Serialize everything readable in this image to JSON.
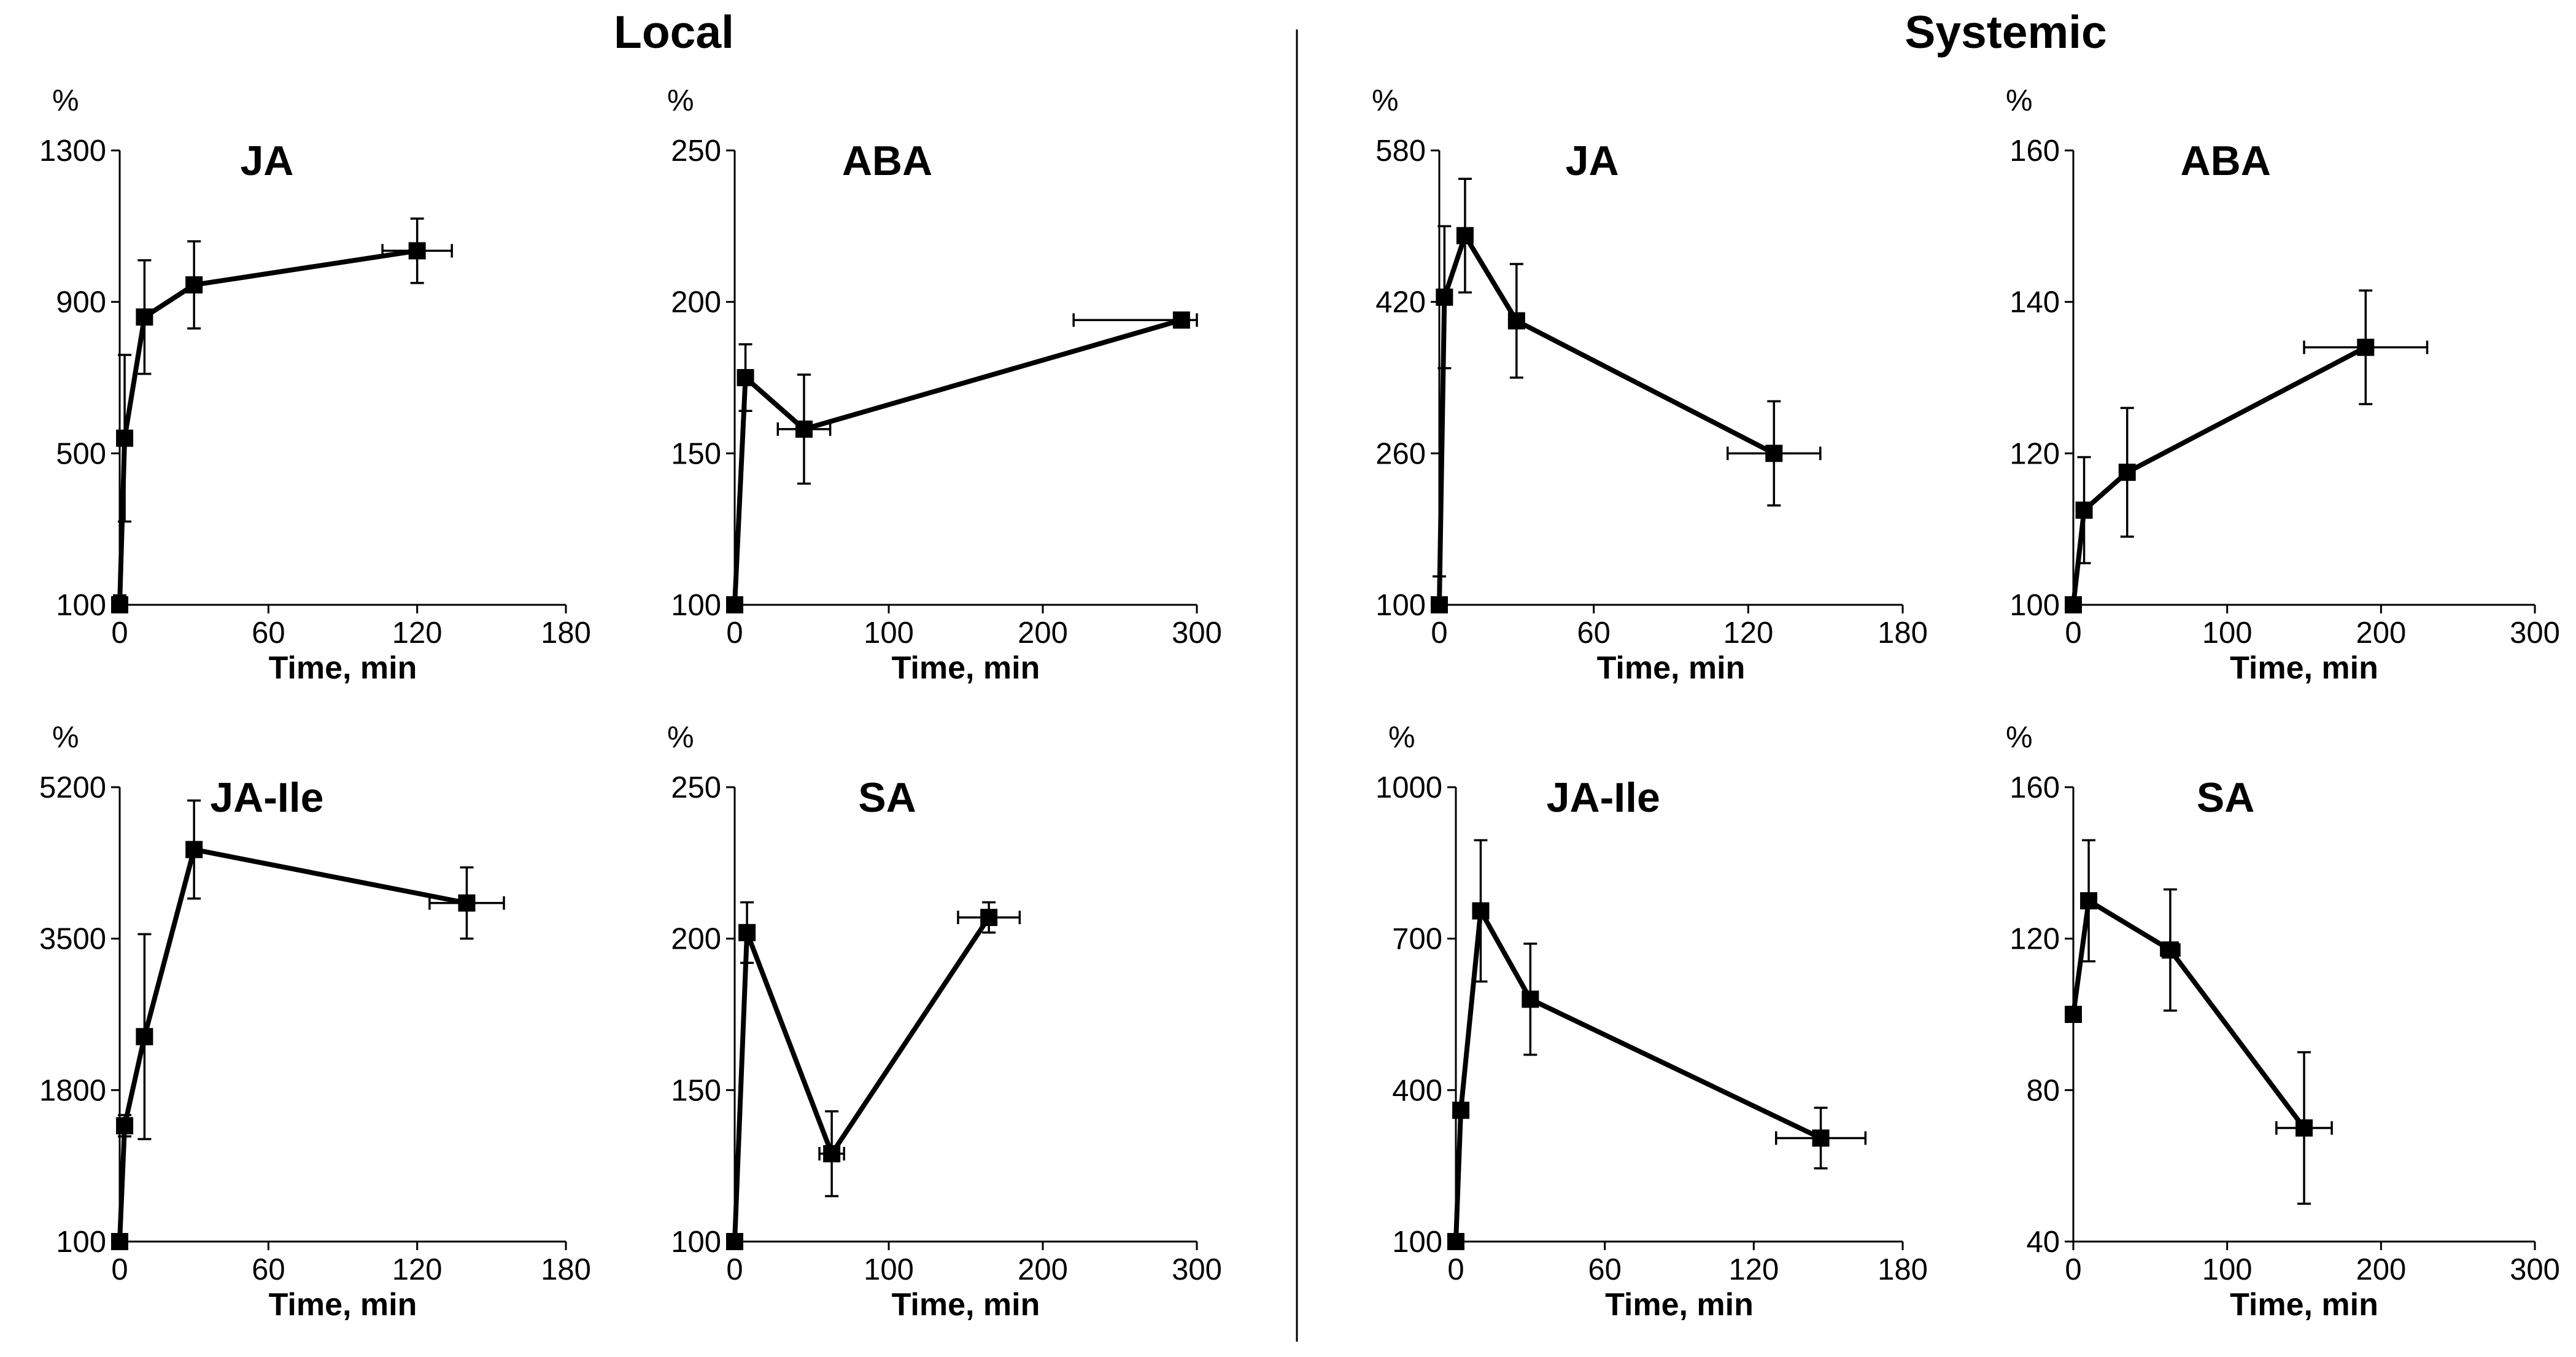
{
  "groups": [
    {
      "title": "Local"
    },
    {
      "title": "Systemic"
    }
  ],
  "chart_data": [
    {
      "type": "line",
      "group": "Local",
      "title": "JA",
      "xlabel": "Time, min",
      "ylabel": "%",
      "xlim": [
        0,
        180
      ],
      "xticks": [
        0,
        60,
        120,
        180
      ],
      "ylim": [
        100,
        1300
      ],
      "yticks": [
        100,
        500,
        900,
        1300
      ],
      "x": [
        0,
        2,
        10,
        30,
        120
      ],
      "y": [
        100,
        540,
        860,
        945,
        1035
      ],
      "x_err": [
        0,
        0,
        0,
        0,
        14
      ],
      "y_err": [
        25,
        220,
        150,
        115,
        85
      ],
      "grid": false
    },
    {
      "type": "line",
      "group": "Local",
      "title": "ABA",
      "xlabel": "Time, min",
      "ylabel": "%",
      "xlim": [
        0,
        300
      ],
      "xticks": [
        0,
        100,
        200,
        300
      ],
      "ylim": [
        100,
        250
      ],
      "yticks": [
        100,
        150,
        200,
        250
      ],
      "x": [
        0,
        7,
        45,
        290
      ],
      "y": [
        100,
        175,
        158,
        194
      ],
      "x_err": [
        0,
        0,
        17,
        70
      ],
      "y_err": [
        0,
        11,
        18,
        0
      ],
      "grid": false
    },
    {
      "type": "line",
      "group": "Systemic",
      "title": "JA",
      "xlabel": "Time, min",
      "ylabel": "%",
      "xlim": [
        0,
        180
      ],
      "xticks": [
        0,
        60,
        120,
        180
      ],
      "ylim": [
        100,
        580
      ],
      "yticks": [
        100,
        260,
        420,
        580
      ],
      "x": [
        0,
        2,
        10,
        30,
        130
      ],
      "y": [
        100,
        425,
        490,
        400,
        260
      ],
      "x_err": [
        0,
        0,
        0,
        0,
        18
      ],
      "y_err": [
        30,
        75,
        60,
        60,
        55
      ],
      "grid": false
    },
    {
      "type": "line",
      "group": "Systemic",
      "title": "ABA",
      "xlabel": "Time, min",
      "ylabel": "%",
      "xlim": [
        0,
        300
      ],
      "xticks": [
        0,
        100,
        200,
        300
      ],
      "ylim": [
        100,
        160
      ],
      "yticks": [
        100,
        120,
        140,
        160
      ],
      "x": [
        0,
        7,
        35,
        190
      ],
      "y": [
        100,
        112.5,
        117.5,
        134
      ],
      "x_err": [
        0,
        0,
        0,
        40
      ],
      "y_err": [
        0,
        7,
        8.5,
        7.5
      ],
      "grid": false
    },
    {
      "type": "line",
      "group": "Local",
      "title": "JA-Ile",
      "xlabel": "Time, min",
      "ylabel": "%",
      "xlim": [
        0,
        180
      ],
      "xticks": [
        0,
        60,
        120,
        180
      ],
      "ylim": [
        100,
        5200
      ],
      "yticks": [
        100,
        1800,
        3500,
        5200
      ],
      "x": [
        0,
        2,
        10,
        30,
        140
      ],
      "y": [
        100,
        1400,
        2400,
        4500,
        3900
      ],
      "x_err": [
        0,
        0,
        0,
        0,
        15
      ],
      "y_err": [
        0,
        120,
        1150,
        550,
        400
      ],
      "grid": false
    },
    {
      "type": "line",
      "group": "Local",
      "title": "SA",
      "xlabel": "Time, min",
      "ylabel": "%",
      "xlim": [
        0,
        300
      ],
      "xticks": [
        0,
        100,
        200,
        300
      ],
      "ylim": [
        100,
        250
      ],
      "yticks": [
        100,
        150,
        200,
        250
      ],
      "x": [
        0,
        8,
        63,
        165
      ],
      "y": [
        100,
        202,
        129,
        207
      ],
      "x_err": [
        0,
        0,
        8,
        20
      ],
      "y_err": [
        0,
        10,
        14,
        5
      ],
      "grid": false
    },
    {
      "type": "line",
      "group": "Systemic",
      "title": "JA-Ile",
      "xlabel": "Time, min",
      "ylabel": "%",
      "xlim": [
        0,
        180
      ],
      "xticks": [
        0,
        60,
        120,
        180
      ],
      "ylim": [
        100,
        1000
      ],
      "yticks": [
        100,
        400,
        700,
        1000
      ],
      "x": [
        0,
        2,
        10,
        30,
        147
      ],
      "y": [
        100,
        360,
        755,
        580,
        305
      ],
      "x_err": [
        0,
        0,
        0,
        0,
        18
      ],
      "y_err": [
        0,
        0,
        140,
        110,
        60
      ],
      "grid": false
    },
    {
      "type": "line",
      "group": "Systemic",
      "title": "SA",
      "xlabel": "Time, min",
      "ylabel": "%",
      "xlim": [
        0,
        300
      ],
      "xticks": [
        0,
        100,
        200,
        300
      ],
      "ylim": [
        40,
        160
      ],
      "yticks": [
        40,
        80,
        120,
        160
      ],
      "x": [
        0,
        10,
        63,
        150
      ],
      "y": [
        100,
        130,
        117,
        70
      ],
      "x_err": [
        0,
        0,
        6,
        18
      ],
      "y_err": [
        0,
        16,
        16,
        20
      ],
      "grid": false
    }
  ]
}
